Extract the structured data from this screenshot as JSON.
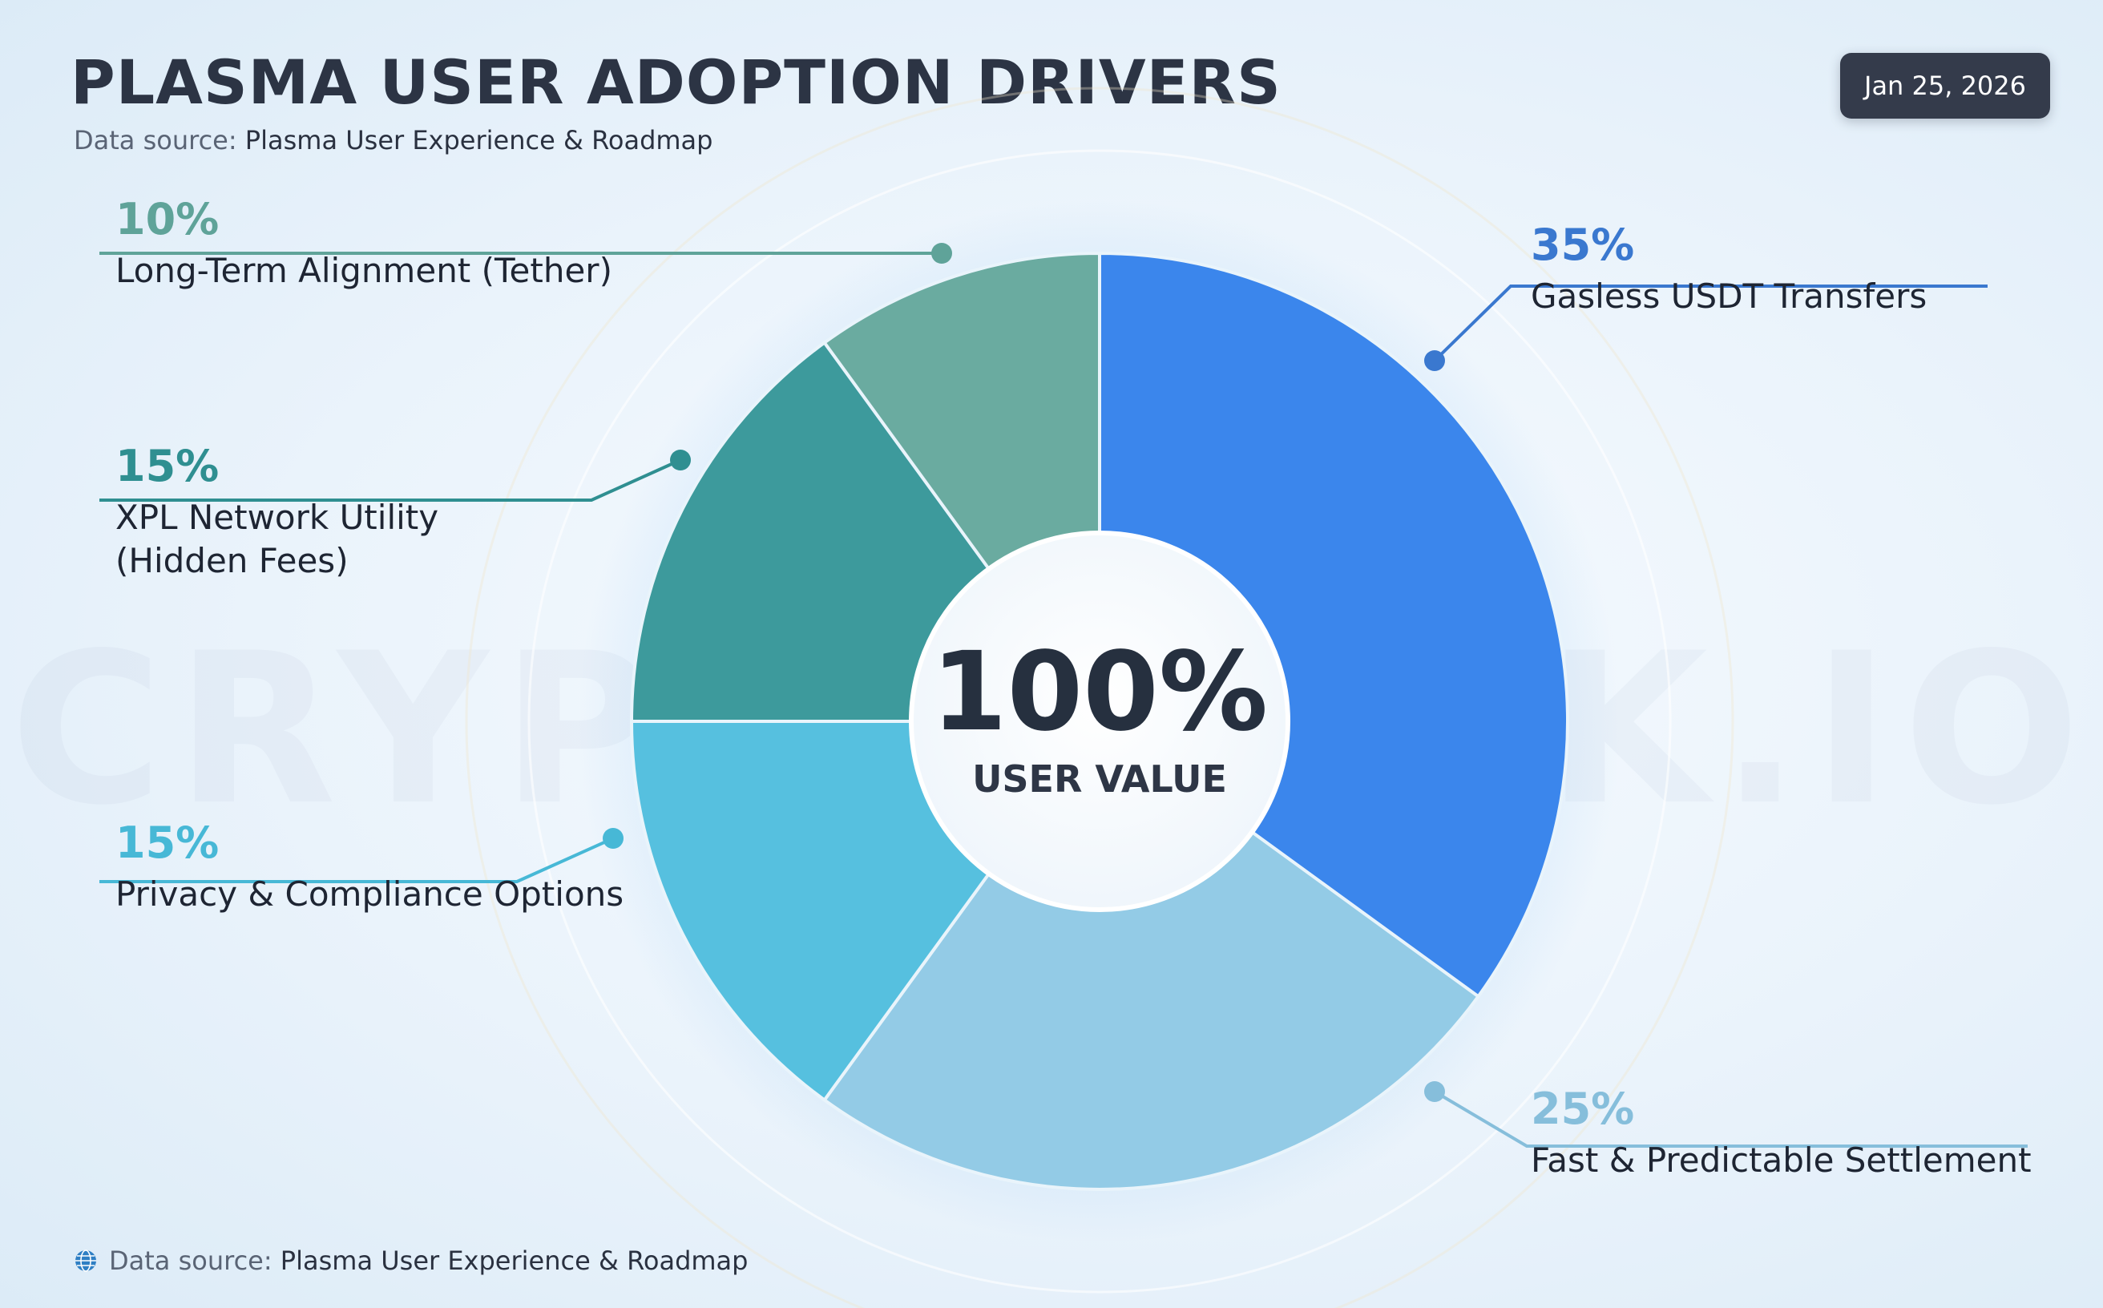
{
  "title": "PLASMA USER ADOPTION DRIVERS",
  "subtitle": {
    "prefix": "Data source:",
    "source": "Plasma User Experience & Roadmap"
  },
  "date": "Jan 25, 2026",
  "watermark": "CRYPTORANK.IO",
  "center": {
    "value": "100%",
    "label": "USER VALUE"
  },
  "footer": {
    "prefix": "Data source:",
    "source": "Plasma User Experience & Roadmap"
  },
  "chart_data": {
    "type": "pie",
    "variant": "donut",
    "title": "PLASMA USER ADOPTION DRIVERS",
    "categories": [
      "Gasless USDT Transfers",
      "Fast & Predictable Settlement",
      "Privacy & Compliance Options",
      "XPL Network Utility (Hidden Fees)",
      "Long-Term Alignment (Tether)"
    ],
    "values": [
      35,
      25,
      15,
      15,
      10
    ],
    "labels": [
      "35%",
      "25%",
      "15%",
      "15%",
      "10%"
    ],
    "colors": [
      "#3b86ec",
      "#93cbe6",
      "#56c0df",
      "#3d9a9c",
      "#6aaba0"
    ],
    "total_label": "100%"
  },
  "callouts": [
    {
      "pct": "35%",
      "label": "Gasless USDT Transfers",
      "color": "#3a78cf"
    },
    {
      "pct": "25%",
      "label": "Fast & Predictable Settlement",
      "color": "#86bedb"
    },
    {
      "pct": "15%",
      "label": "Privacy & Compliance Options",
      "color": "#47b8d6"
    },
    {
      "pct": "15%",
      "label": "XPL Network Utility (Hidden Fees)",
      "label_line1": "XPL Network Utility",
      "label_line2": "(Hidden Fees)",
      "color": "#2f8f91"
    },
    {
      "pct": "10%",
      "label": "Long-Term Alignment (Tether)",
      "color": "#5fa399"
    }
  ]
}
